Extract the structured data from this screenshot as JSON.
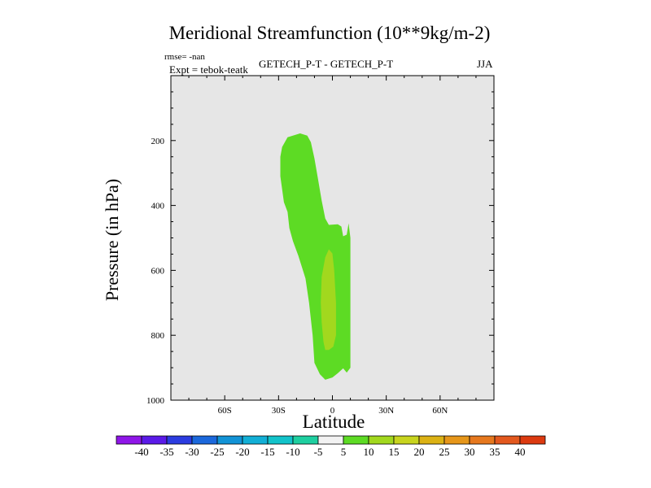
{
  "title": "Meridional Streamfunction (10**9kg/m-2)",
  "rmse_label": "rmse= -nan",
  "expt_label": "Expt = tebok-teatk",
  "subtitle": "GETECH_P-T - GETECH_P-T",
  "season": "JJA",
  "chart_data": {
    "type": "contour",
    "title": "Meridional Streamfunction (10**9kg/m-2)",
    "xlabel": "Latitude",
    "ylabel": "Pressure (in hPa)",
    "xlim": [
      -90,
      90
    ],
    "ylim": [
      1000,
      0
    ],
    "xticks": [
      -60,
      -30,
      0,
      30,
      60
    ],
    "xtick_labels": [
      "60S",
      "30S",
      "0",
      "30N",
      "60N"
    ],
    "yticks": [
      200,
      400,
      600,
      800,
      1000
    ],
    "ytick_labels": [
      "200",
      "400",
      "600",
      "800",
      "1000"
    ],
    "background_color": "#e6e6e6",
    "regions": [
      {
        "name": "5 to 10",
        "color": "#5ddb24",
        "points": [
          [
            -27,
            390
          ],
          [
            -29,
            310
          ],
          [
            -29,
            250
          ],
          [
            -28,
            220
          ],
          [
            -25,
            190
          ],
          [
            -18,
            178
          ],
          [
            -14,
            185
          ],
          [
            -12,
            205
          ],
          [
            -10,
            255
          ],
          [
            -8,
            320
          ],
          [
            -6,
            385
          ],
          [
            -4,
            440
          ],
          [
            -2,
            460
          ],
          [
            3,
            458
          ],
          [
            5,
            465
          ],
          [
            6,
            495
          ],
          [
            8,
            490
          ],
          [
            9,
            455
          ],
          [
            10,
            500
          ],
          [
            10,
            625
          ],
          [
            10,
            900
          ],
          [
            8,
            915
          ],
          [
            6,
            902
          ],
          [
            3,
            917
          ],
          [
            0,
            930
          ],
          [
            -4,
            937
          ],
          [
            -7,
            920
          ],
          [
            -10,
            885
          ],
          [
            -11,
            800
          ],
          [
            -13,
            700
          ],
          [
            -15,
            625
          ],
          [
            -19,
            555
          ],
          [
            -22,
            510
          ],
          [
            -24,
            470
          ],
          [
            -25,
            420
          ]
        ]
      },
      {
        "name": "10 to 15",
        "color": "#a2d81e",
        "points": [
          [
            -5,
            820
          ],
          [
            -6,
            760
          ],
          [
            -6.5,
            700
          ],
          [
            -6,
            620
          ],
          [
            -4,
            560
          ],
          [
            -2,
            535
          ],
          [
            0,
            548
          ],
          [
            1,
            600
          ],
          [
            2,
            700
          ],
          [
            2,
            800
          ],
          [
            0.5,
            835
          ],
          [
            -2,
            845
          ],
          [
            -4,
            845
          ]
        ]
      }
    ],
    "colorbar": {
      "labels": [
        "-40",
        "-35",
        "-30",
        "-25",
        "-20",
        "-15",
        "-10",
        "-5",
        "5",
        "10",
        "15",
        "20",
        "25",
        "30",
        "35",
        "40"
      ],
      "colors": [
        "#8f16e8",
        "#5a1ae8",
        "#2b3ce0",
        "#1b68dc",
        "#1293d6",
        "#12afd6",
        "#12c3ca",
        "#1ecfa0",
        "#f2f2f2",
        "#5ddb24",
        "#a2d81e",
        "#c8d41e",
        "#dcb214",
        "#e6961a",
        "#e6781e",
        "#e3581e",
        "#dc3a10"
      ]
    }
  }
}
